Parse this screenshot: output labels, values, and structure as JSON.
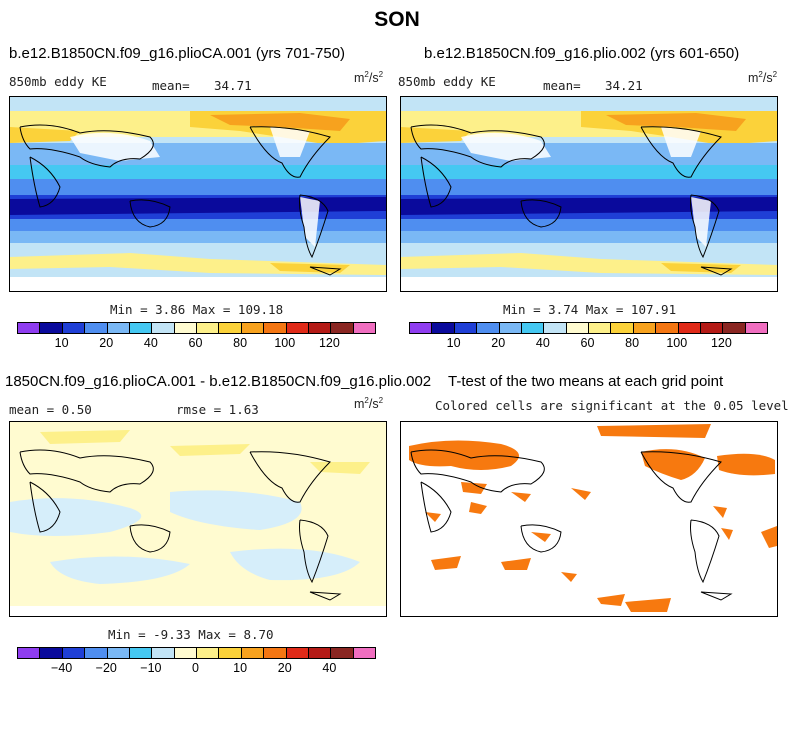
{
  "title": "SON",
  "panels": [
    {
      "title": "b.e12.B1850CN.f09_g16.plioCA.001 (yrs 701-750)",
      "left_label": "850mb eddy KE",
      "mean_label": "mean=",
      "mean_value": "34.71",
      "units": "m",
      "units_sup1": "2",
      "units_sep": "/s",
      "units_sup2": "2",
      "minmax": "Min =   3.86 Max = 109.18"
    },
    {
      "title": "b.e12.B1850CN.f09_g16.plio.002 (yrs 601-650)",
      "left_label": "850mb eddy KE",
      "mean_label": "mean=",
      "mean_value": "34.21",
      "units": "m",
      "units_sup1": "2",
      "units_sep": "/s",
      "units_sup2": "2",
      "minmax": "Min =   3.74 Max = 107.91"
    },
    {
      "title": "1850CN.f09_g16.plioCA.001 - b.e12.B1850CN.f09_g16.plio.002",
      "mean_text": "mean =   0.50",
      "rmse_text": "rmse =   1.63",
      "units": "m",
      "units_sup1": "2",
      "units_sep": "/s",
      "units_sup2": "2",
      "minmax": "Min =  -9.33 Max =   8.70"
    },
    {
      "title": "T-test of the two means at each grid point",
      "subtitle": "Colored cells are significant at the 0.05 level"
    }
  ],
  "colorbar_colors": [
    "#8f3df0",
    "#0a0a9c",
    "#1f3fd6",
    "#4f8ef0",
    "#7ab8f5",
    "#45c8f2",
    "#c2e4f6",
    "#fffbd0",
    "#fdf08a",
    "#fbd23a",
    "#f7a21e",
    "#f47612",
    "#e02a18",
    "#b41a16",
    "#8a2622",
    "#f06ec0"
  ],
  "chart_data": [
    {
      "type": "heatmap",
      "title": "b.e12.B1850CN.f09_g16.plioCA.001 (yrs 701-750)",
      "variable": "850mb eddy KE",
      "units": "m2/s2",
      "mean": 34.71,
      "min": 3.86,
      "max": 109.18,
      "colorbar_ticks": [
        10,
        20,
        40,
        60,
        80,
        100,
        120
      ],
      "colorbar_ticklabels": [
        "10",
        "20",
        "40",
        "60",
        "80",
        "100",
        "120"
      ]
    },
    {
      "type": "heatmap",
      "title": "b.e12.B1850CN.f09_g16.plio.002 (yrs 601-650)",
      "variable": "850mb eddy KE",
      "units": "m2/s2",
      "mean": 34.21,
      "min": 3.74,
      "max": 107.91,
      "colorbar_ticks": [
        10,
        20,
        40,
        60,
        80,
        100,
        120
      ],
      "colorbar_ticklabels": [
        "10",
        "20",
        "40",
        "60",
        "80",
        "100",
        "120"
      ]
    },
    {
      "type": "heatmap",
      "title": "1850CN.f09_g16.plioCA.001 - b.e12.B1850CN.f09_g16.plio.002",
      "units": "m2/s2",
      "mean": 0.5,
      "rmse": 1.63,
      "min": -9.33,
      "max": 8.7,
      "colorbar_ticks": [
        -40,
        -20,
        -10,
        0,
        10,
        20,
        40
      ],
      "colorbar_ticklabels": [
        "−40",
        "−20",
        "−10",
        "0",
        "10",
        "20",
        "40"
      ]
    },
    {
      "type": "heatmap",
      "title": "T-test of the two means at each grid point",
      "subtitle": "Colored cells are significant at the 0.05 level",
      "significance_level": 0.05
    }
  ]
}
